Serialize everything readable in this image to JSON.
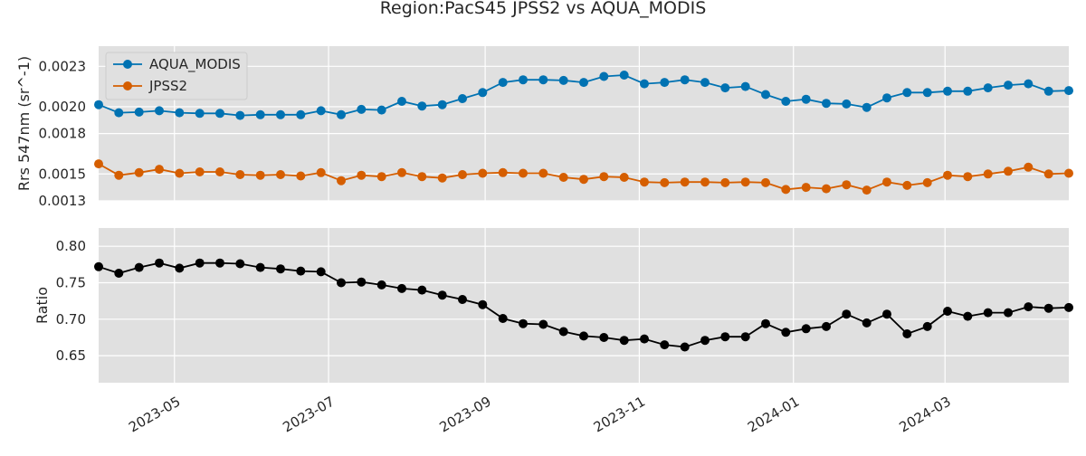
{
  "title": "Region:PacS45 JPSS2 vs AQUA_MODIS",
  "chart_data": [
    {
      "type": "line",
      "ylabel": "Rrs 547nm (sr^-1)",
      "xlabel": "",
      "ylim": [
        0.0013,
        0.00245
      ],
      "yticks": [
        0.0013,
        0.0015,
        0.0018,
        0.002,
        0.0023
      ],
      "ytick_labels": [
        "0.0013",
        "0.0015",
        "0.0018",
        "0.0020",
        "0.0023"
      ],
      "grid": true,
      "legend_position": "top-left",
      "series": [
        {
          "name": "AQUA_MODIS",
          "color": "#0072B2",
          "values": [
            0.002015,
            0.001955,
            0.00196,
            0.00197,
            0.001955,
            0.00195,
            0.00195,
            0.001935,
            0.00194,
            0.00194,
            0.00194,
            0.00197,
            0.00194,
            0.00198,
            0.001975,
            0.00204,
            0.002005,
            0.002015,
            0.00206,
            0.002105,
            0.00218,
            0.0022,
            0.0022,
            0.002195,
            0.00218,
            0.002225,
            0.002235,
            0.00217,
            0.00218,
            0.0022,
            0.00218,
            0.00214,
            0.00215,
            0.00209,
            0.00204,
            0.002055,
            0.002025,
            0.00202,
            0.001995,
            0.002065,
            0.002105,
            0.002105,
            0.002115,
            0.002115,
            0.00214,
            0.00216,
            0.00217,
            0.002115,
            0.00212
          ]
        },
        {
          "name": "JPSS2",
          "color": "#D55E00",
          "values": [
            0.001575,
            0.00149,
            0.00151,
            0.001535,
            0.001505,
            0.001515,
            0.001515,
            0.001495,
            0.00149,
            0.001495,
            0.001485,
            0.00151,
            0.00145,
            0.00149,
            0.00148,
            0.00151,
            0.00148,
            0.00147,
            0.001495,
            0.001505,
            0.00151,
            0.001505,
            0.001505,
            0.001475,
            0.00146,
            0.00148,
            0.001475,
            0.00144,
            0.001435,
            0.00144,
            0.00144,
            0.001435,
            0.00144,
            0.001435,
            0.001385,
            0.0014,
            0.00139,
            0.00142,
            0.00138,
            0.00144,
            0.001415,
            0.001435,
            0.00149,
            0.00148,
            0.0015,
            0.00152,
            0.00155,
            0.0015,
            0.001505
          ]
        }
      ]
    },
    {
      "type": "line",
      "ylabel": "Ratio",
      "xlabel": "",
      "ylim": [
        0.613,
        0.825
      ],
      "yticks": [
        0.65,
        0.7,
        0.75,
        0.8
      ],
      "ytick_labels": [
        "0.65",
        "0.70",
        "0.75",
        "0.80"
      ],
      "xticks": [
        "2023-05-01",
        "2023-07-01",
        "2023-09-01",
        "2023-11-01",
        "2024-01-01",
        "2024-03-01"
      ],
      "xtick_labels": [
        "2023-05",
        "2023-07",
        "2023-09",
        "2023-11",
        "2024-01",
        "2024-03"
      ],
      "grid": true,
      "series": [
        {
          "color": "#000000",
          "values": [
            0.772,
            0.763,
            0.771,
            0.777,
            0.77,
            0.777,
            0.777,
            0.776,
            0.771,
            0.769,
            0.766,
            0.765,
            0.75,
            0.751,
            0.747,
            0.742,
            0.74,
            0.733,
            0.727,
            0.72,
            0.701,
            0.694,
            0.693,
            0.683,
            0.677,
            0.675,
            0.671,
            0.673,
            0.665,
            0.662,
            0.671,
            0.676,
            0.676,
            0.694,
            0.682,
            0.687,
            0.69,
            0.707,
            0.695,
            0.707,
            0.68,
            0.69,
            0.711,
            0.704,
            0.709,
            0.709,
            0.717,
            0.715,
            0.716
          ]
        }
      ]
    }
  ],
  "dates": [
    "2023-04-01",
    "2023-04-09",
    "2023-04-17",
    "2023-04-25",
    "2023-05-03",
    "2023-05-11",
    "2023-05-19",
    "2023-05-27",
    "2023-06-04",
    "2023-06-12",
    "2023-06-20",
    "2023-06-28",
    "2023-07-06",
    "2023-07-14",
    "2023-07-22",
    "2023-07-30",
    "2023-08-07",
    "2023-08-15",
    "2023-08-23",
    "2023-08-31",
    "2023-09-08",
    "2023-09-16",
    "2023-09-24",
    "2023-10-02",
    "2023-10-10",
    "2023-10-18",
    "2023-10-26",
    "2023-11-03",
    "2023-11-11",
    "2023-11-19",
    "2023-11-27",
    "2023-12-05",
    "2023-12-13",
    "2023-12-21",
    "2023-12-29",
    "2024-01-06",
    "2024-01-14",
    "2024-01-22",
    "2024-01-30",
    "2024-02-07",
    "2024-02-15",
    "2024-02-23",
    "2024-03-02",
    "2024-03-10",
    "2024-03-18",
    "2024-03-26",
    "2024-04-03",
    "2024-04-11",
    "2024-04-19"
  ]
}
